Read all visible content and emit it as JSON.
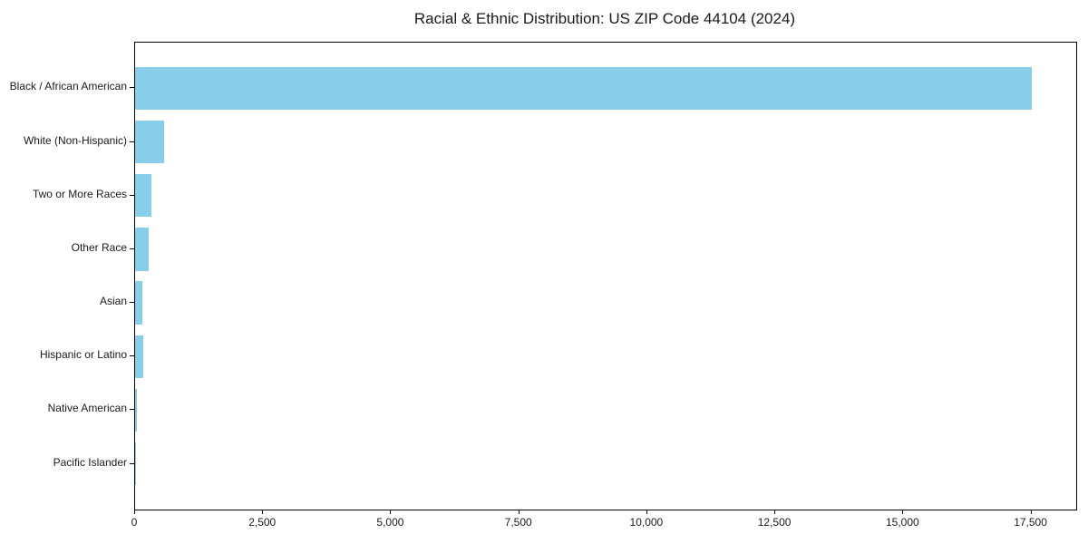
{
  "title": "Racial & Ethnic Distribution: US ZIP Code 44104 (2024)",
  "chart_data": {
    "type": "bar",
    "orientation": "horizontal",
    "title": "Racial & Ethnic Distribution: US ZIP Code 44104 (2024)",
    "categories": [
      "Black / African American",
      "White (Non-Hispanic)",
      "Two or More Races",
      "Other Race",
      "Asian",
      "Hispanic or Latino",
      "Native American",
      "Pacific Islander"
    ],
    "values": [
      17500,
      560,
      310,
      260,
      145,
      155,
      30,
      5
    ],
    "x_ticks": [
      {
        "value": 0,
        "label": "0"
      },
      {
        "value": 2500,
        "label": "2,500"
      },
      {
        "value": 5000,
        "label": "5,000"
      },
      {
        "value": 7500,
        "label": "7,500"
      },
      {
        "value": 10000,
        "label": "10,000"
      },
      {
        "value": 12500,
        "label": "12,500"
      },
      {
        "value": 15000,
        "label": "15,000"
      },
      {
        "value": 17500,
        "label": "17,500"
      }
    ],
    "xlim": [
      0,
      18375
    ],
    "xlabel": "",
    "ylabel": "",
    "grid": false,
    "legend": null,
    "bar_color": "#87CEEB",
    "axis_color": "#000000",
    "text_color": "#1a1a1a",
    "background_color": "#ffffff"
  }
}
